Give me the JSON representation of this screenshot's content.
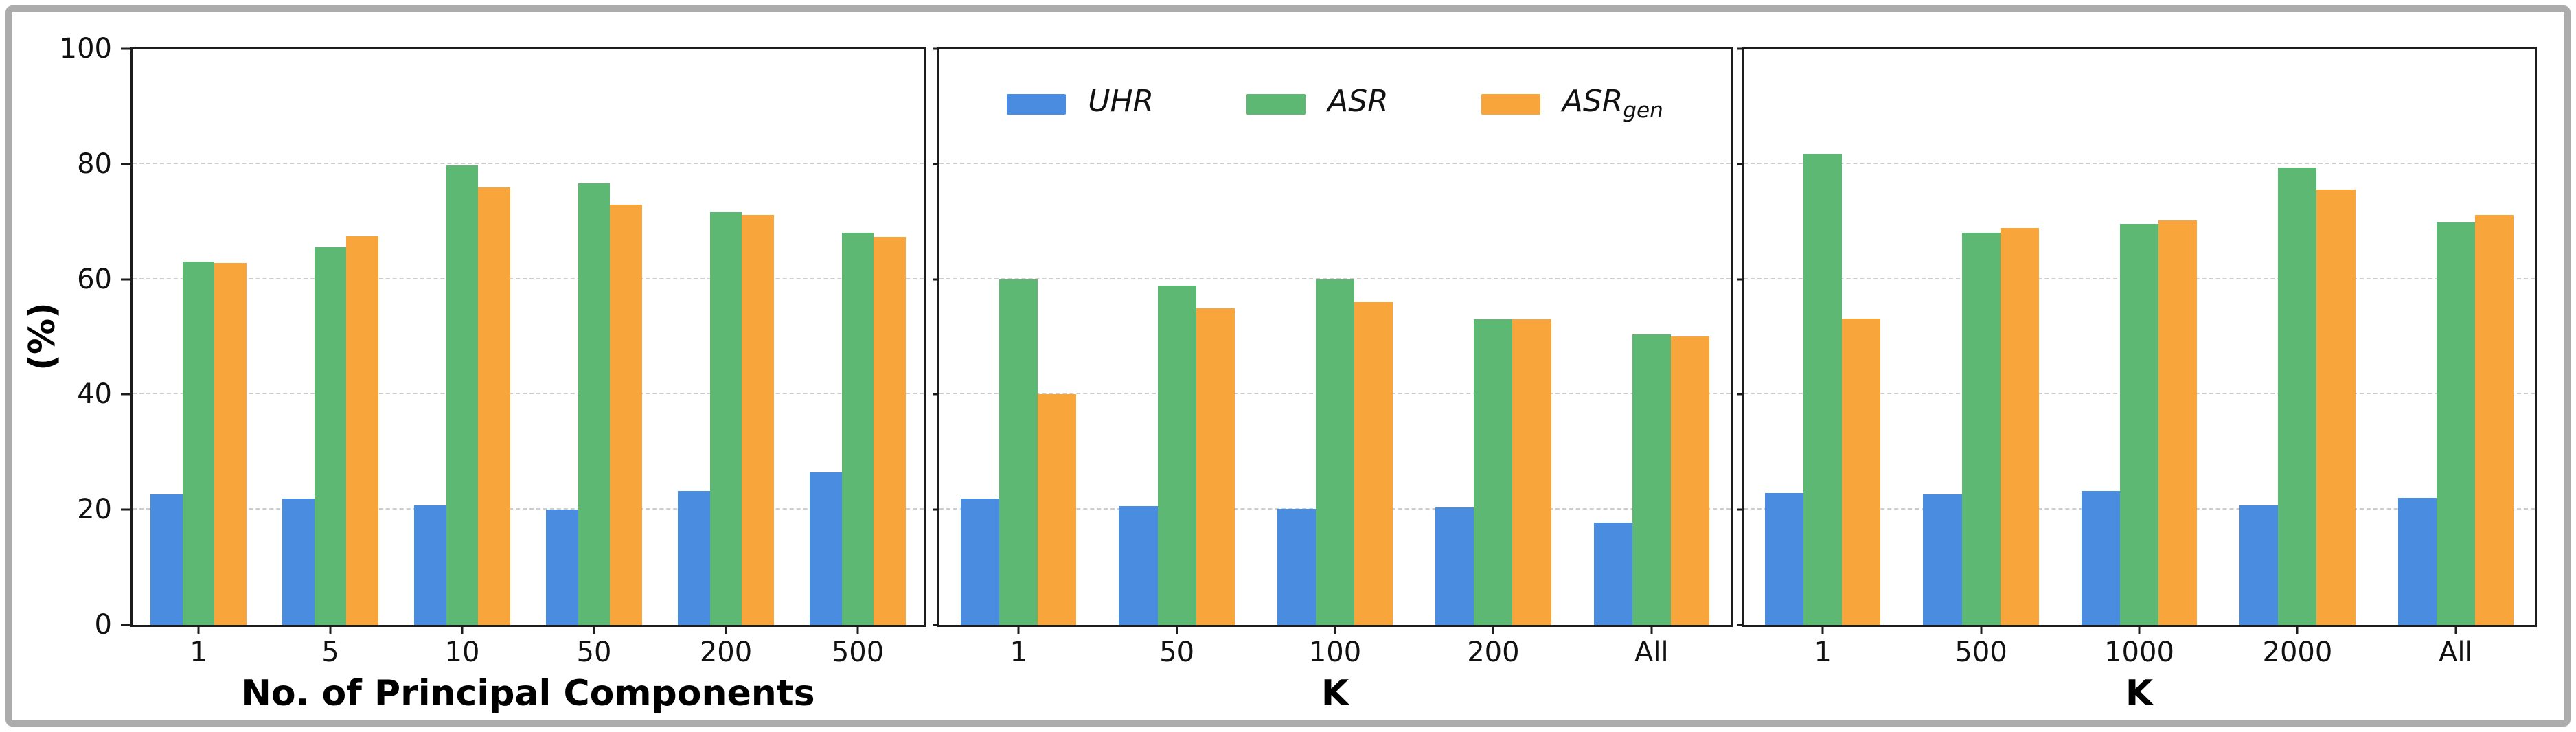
{
  "figure": {
    "ylabel": "(%)",
    "yticks": [
      0,
      20,
      40,
      60,
      80,
      100
    ],
    "series_colors": [
      "#4a8ce0",
      "#5cb873",
      "#f8a63b"
    ],
    "grid_color": "#cdcdcd",
    "spine_color": "#1c1c1c",
    "frame_color": "#acacac",
    "legend": {
      "items": [
        {
          "label": "UHR",
          "sub": ""
        },
        {
          "label": "ASR",
          "sub": ""
        },
        {
          "label": "ASR",
          "sub": "gen"
        }
      ]
    }
  },
  "chart_data": [
    {
      "type": "bar",
      "xlabel": "No. of Principal Components",
      "ylabel": "(%)",
      "ylim": [
        0,
        100
      ],
      "grid": true,
      "categories": [
        "1",
        "5",
        "10",
        "50",
        "200",
        "500"
      ],
      "series": [
        {
          "name": "UHR",
          "values": [
            22.6,
            21.9,
            20.8,
            20.0,
            23.3,
            26.5
          ]
        },
        {
          "name": "ASR",
          "values": [
            63.0,
            65.6,
            79.7,
            76.7,
            71.6,
            68.0
          ]
        },
        {
          "name": "ASRgen",
          "values": [
            62.8,
            67.5,
            75.9,
            73.0,
            71.2,
            67.3
          ]
        }
      ]
    },
    {
      "type": "bar",
      "xlabel": "K",
      "ylabel": "(%)",
      "ylim": [
        0,
        100
      ],
      "grid": true,
      "legend_position": "upper center",
      "categories": [
        "1",
        "50",
        "100",
        "200",
        "All"
      ],
      "series": [
        {
          "name": "UHR",
          "values": [
            21.9,
            20.6,
            20.2,
            20.4,
            17.8
          ]
        },
        {
          "name": "ASR",
          "values": [
            59.9,
            58.9,
            60.0,
            53.0,
            50.4
          ]
        },
        {
          "name": "ASRgen",
          "values": [
            40.0,
            55.0,
            56.0,
            53.0,
            50.1
          ]
        }
      ]
    },
    {
      "type": "bar",
      "xlabel": "K",
      "ylabel": "(%)",
      "ylim": [
        0,
        100
      ],
      "grid": true,
      "categories": [
        "1",
        "500",
        "1000",
        "2000",
        "All"
      ],
      "series": [
        {
          "name": "UHR",
          "values": [
            22.9,
            22.7,
            23.3,
            20.7,
            22.1
          ]
        },
        {
          "name": "ASR",
          "values": [
            81.8,
            68.1,
            69.6,
            79.4,
            69.8
          ]
        },
        {
          "name": "ASRgen",
          "values": [
            53.2,
            68.9,
            70.2,
            75.6,
            71.2
          ]
        }
      ]
    }
  ]
}
